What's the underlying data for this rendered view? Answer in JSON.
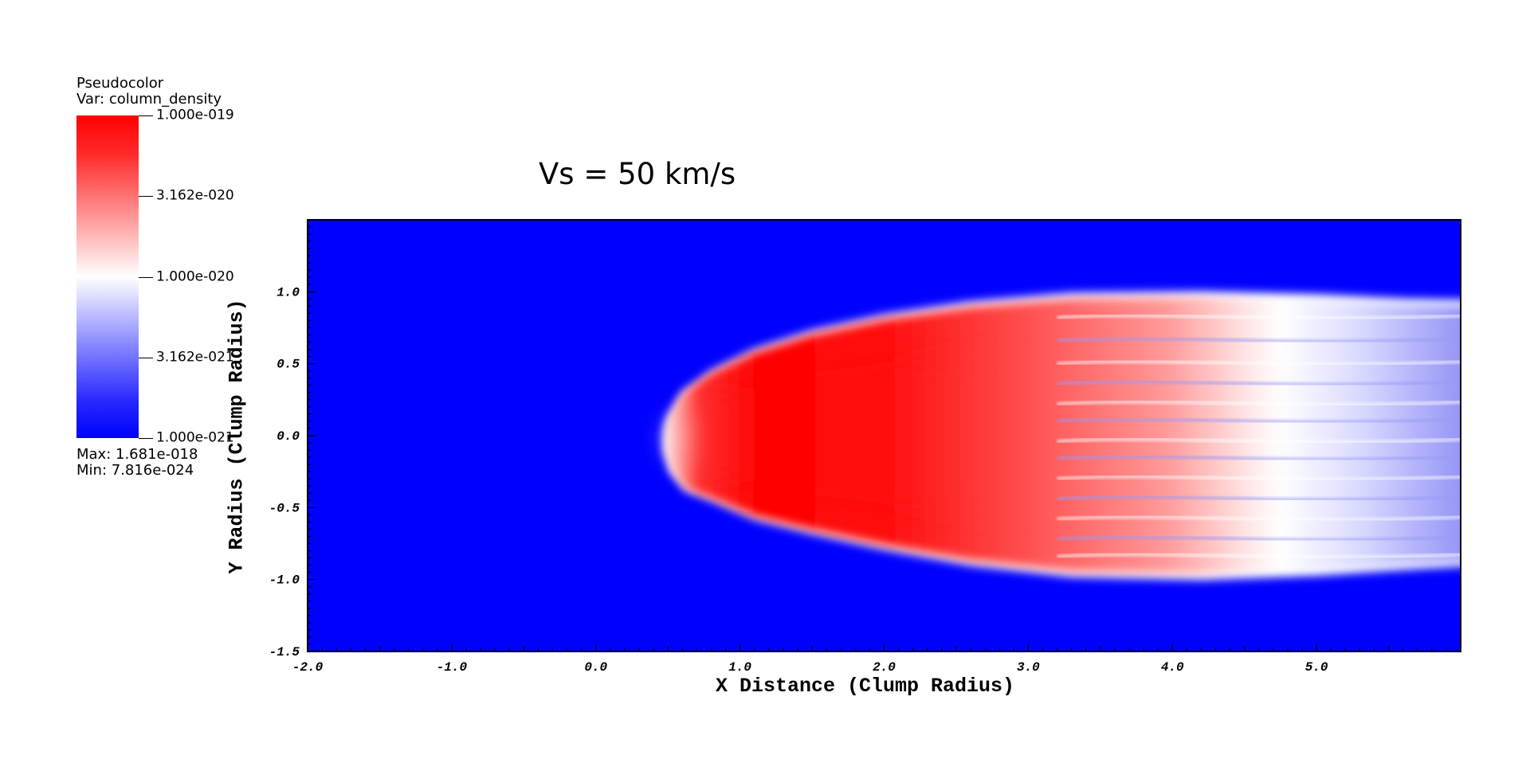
{
  "legend": {
    "title": "Pseudocolor",
    "var_label": "Var: column_density",
    "ticks": [
      "1.000e-019",
      "3.162e-020",
      "1.000e-020",
      "3.162e-021",
      "1.000e-021"
    ],
    "max_label": "Max:  1.681e-018",
    "min_label": "Min:  7.816e-024",
    "colors": {
      "top": "#ff0000",
      "middle": "#ffffff",
      "bottom": "#0000ff"
    }
  },
  "chart_data": {
    "type": "heatmap",
    "title": "Vs = 50 km/s",
    "xlabel": "X Distance (Clump Radius)",
    "ylabel": "Y Radius (Clump Radius)",
    "xlim": [
      -2.0,
      6.0
    ],
    "ylim": [
      -1.5,
      1.5
    ],
    "x_ticks": [
      "-2.0",
      "-1.0",
      "0.0",
      "1.0",
      "2.0",
      "3.0",
      "4.0",
      "5.0"
    ],
    "y_ticks": [
      "-1.5",
      "-1.0",
      "-0.5",
      "0.0",
      "0.5",
      "1.0"
    ],
    "colormap": "blue-white-red",
    "scale": "log",
    "background_color": "#0000ff",
    "feature": {
      "name": "clump",
      "head_x": 0.48,
      "center_y": 0.0,
      "max_half_width": 1.02,
      "peak_x": 1.6,
      "tail_x": 6.0
    }
  }
}
